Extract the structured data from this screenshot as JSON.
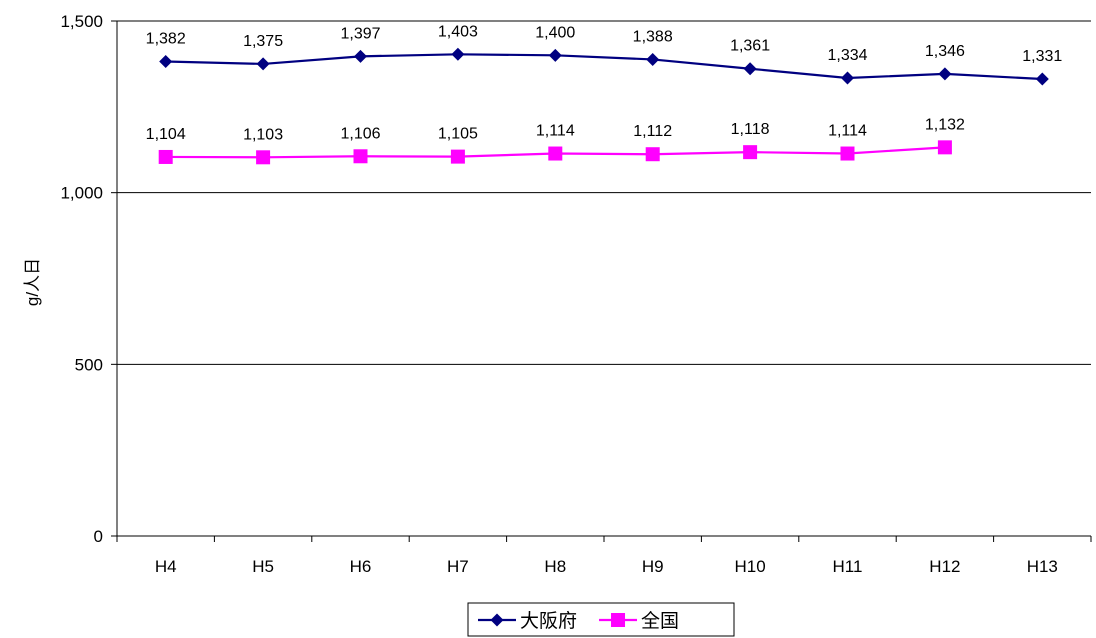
{
  "chart_data": {
    "type": "line",
    "categories": [
      "H4",
      "H5",
      "H6",
      "H7",
      "H8",
      "H9",
      "H10",
      "H11",
      "H12",
      "H13"
    ],
    "series": [
      {
        "name": "大阪府",
        "values": [
          1382,
          1375,
          1397,
          1403,
          1400,
          1388,
          1361,
          1334,
          1346,
          1331
        ],
        "labels": [
          "1,382",
          "1,375",
          "1,397",
          "1,403",
          "1,400",
          "1,388",
          "1,361",
          "1,334",
          "1,346",
          "1,331"
        ],
        "color": "#000080",
        "marker": "diamond"
      },
      {
        "name": "全国",
        "values": [
          1104,
          1103,
          1106,
          1105,
          1114,
          1112,
          1118,
          1114,
          1132,
          null
        ],
        "labels": [
          "1,104",
          "1,103",
          "1,106",
          "1,105",
          "1,114",
          "1,112",
          "1,118",
          "1,114",
          "1,132",
          ""
        ],
        "color": "#ff00ff",
        "marker": "square"
      }
    ],
    "title": "",
    "xlabel": "",
    "ylabel": "g/人日",
    "ylim": [
      0,
      1500
    ],
    "yticks": [
      0,
      500,
      1000,
      1500
    ],
    "ytick_labels": [
      "0",
      "500",
      "1,000",
      "1,500"
    ],
    "grid": true,
    "legend_position": "bottom-center"
  }
}
